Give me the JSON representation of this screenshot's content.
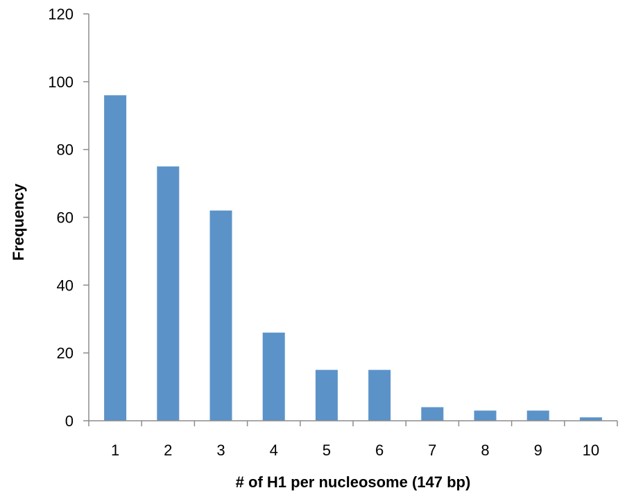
{
  "chart_data": {
    "type": "bar",
    "categories": [
      "1",
      "2",
      "3",
      "4",
      "5",
      "6",
      "7",
      "8",
      "9",
      "10"
    ],
    "values": [
      96,
      75,
      62,
      26,
      15,
      15,
      4,
      3,
      3,
      1
    ],
    "title": "",
    "xlabel": "# of H1 per nucleosome (147 bp)",
    "ylabel": "Frequency",
    "ylim": [
      0,
      120
    ],
    "yticks": [
      0,
      20,
      40,
      60,
      80,
      100,
      120
    ],
    "grid": false,
    "legend": "none",
    "bar_color": "#5b93c9"
  }
}
